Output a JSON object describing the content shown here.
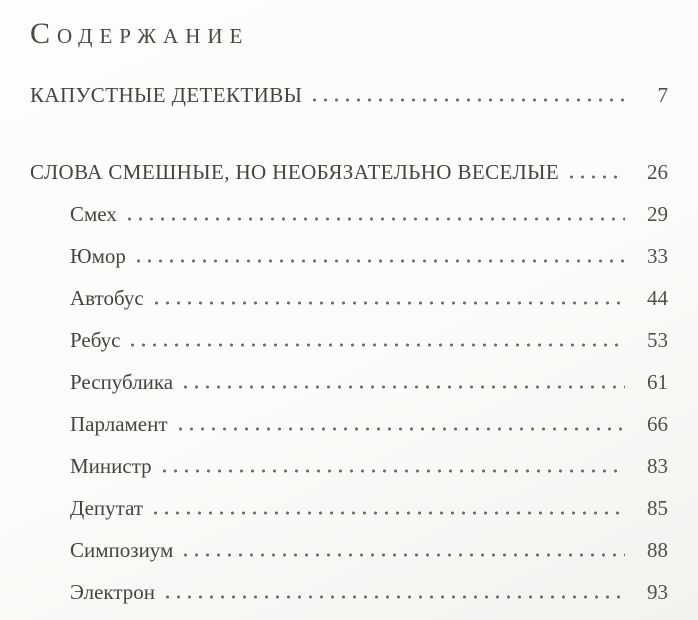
{
  "page_title": "Содержание",
  "toc": {
    "entries": [
      {
        "label": "КАПУСТНЫЕ ДЕТЕКТИВЫ",
        "page": "7",
        "level": "section"
      },
      {
        "label": "СЛОВА СМЕШНЫЕ, НО НЕОБЯЗАТЕЛЬНО ВЕСЕЛЫЕ",
        "page": "26",
        "level": "section"
      },
      {
        "label": "Смех",
        "page": "29",
        "level": "sub"
      },
      {
        "label": "Юмор",
        "page": "33",
        "level": "sub"
      },
      {
        "label": "Автобус",
        "page": "44",
        "level": "sub"
      },
      {
        "label": "Ребус",
        "page": "53",
        "level": "sub"
      },
      {
        "label": "Республика",
        "page": "61",
        "level": "sub"
      },
      {
        "label": "Парламент",
        "page": "66",
        "level": "sub"
      },
      {
        "label": "Министр",
        "page": "83",
        "level": "sub"
      },
      {
        "label": "Депутат",
        "page": "85",
        "level": "sub"
      },
      {
        "label": "Симпозиум",
        "page": "88",
        "level": "sub"
      },
      {
        "label": "Электрон",
        "page": "93",
        "level": "sub"
      }
    ]
  },
  "colors": {
    "ink": "#45443f",
    "dots": "#6f6e68",
    "paper": "#fbfbf9"
  }
}
